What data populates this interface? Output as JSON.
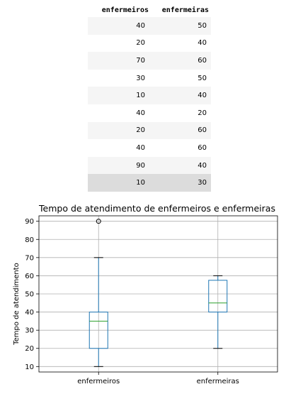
{
  "table": {
    "headers": [
      "enfermeiros",
      "enfermeiras"
    ],
    "rows": [
      [
        "40",
        "50"
      ],
      [
        "20",
        "40"
      ],
      [
        "70",
        "60"
      ],
      [
        "30",
        "50"
      ],
      [
        "10",
        "40"
      ],
      [
        "40",
        "20"
      ],
      [
        "20",
        "60"
      ],
      [
        "40",
        "60"
      ],
      [
        "90",
        "40"
      ],
      [
        "10",
        "30"
      ]
    ]
  },
  "chart_data": {
    "type": "boxplot",
    "title": "Tempo de atendimento de enfermeiros e enfermeiras",
    "xlabel": "",
    "ylabel": "Tempo de atendimento",
    "ylim": [
      7,
      93
    ],
    "yticks": [
      10,
      20,
      30,
      40,
      50,
      60,
      70,
      80,
      90
    ],
    "grid": true,
    "colors": {
      "box": "#1f77b4",
      "median": "#2ca02c",
      "grid": "#b0b0b0"
    },
    "boxes": [
      {
        "label": "enfermeiros",
        "whisker_low": 10,
        "q1": 20,
        "median": 35,
        "q3": 40,
        "whisker_high": 70,
        "outliers": [
          90
        ]
      },
      {
        "label": "enfermeiras",
        "whisker_low": 20,
        "q1": 40,
        "median": 45,
        "q3": 57.5,
        "whisker_high": 60,
        "outliers": []
      }
    ]
  }
}
